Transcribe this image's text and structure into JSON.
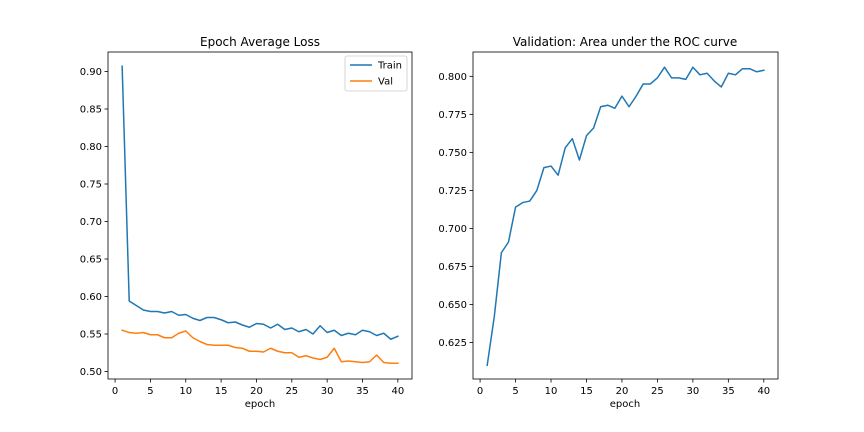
{
  "chart_data": [
    {
      "type": "line",
      "title": "Epoch Average Loss",
      "xlabel": "epoch",
      "ylabel": "",
      "xlim": [
        -1,
        42
      ],
      "ylim": [
        0.49,
        0.926
      ],
      "xticks": [
        0,
        5,
        10,
        15,
        20,
        25,
        30,
        35,
        40
      ],
      "yticks": [
        0.5,
        0.55,
        0.6,
        0.65,
        0.7,
        0.75,
        0.8,
        0.85,
        0.9
      ],
      "ytick_labels": [
        "0.50",
        "0.55",
        "0.60",
        "0.65",
        "0.70",
        "0.75",
        "0.80",
        "0.85",
        "0.90"
      ],
      "legend": "top-right",
      "series": [
        {
          "name": "Train",
          "color": "#1f77b4",
          "x": [
            1,
            2,
            3,
            4,
            5,
            6,
            7,
            8,
            9,
            10,
            11,
            12,
            13,
            14,
            15,
            16,
            17,
            18,
            19,
            20,
            21,
            22,
            23,
            24,
            25,
            26,
            27,
            28,
            29,
            30,
            31,
            32,
            33,
            34,
            35,
            36,
            37,
            38,
            39,
            40
          ],
          "values": [
            0.907,
            0.594,
            0.588,
            0.582,
            0.58,
            0.58,
            0.578,
            0.58,
            0.575,
            0.576,
            0.571,
            0.568,
            0.572,
            0.572,
            0.569,
            0.565,
            0.566,
            0.562,
            0.559,
            0.564,
            0.563,
            0.558,
            0.563,
            0.556,
            0.558,
            0.553,
            0.556,
            0.55,
            0.561,
            0.552,
            0.555,
            0.548,
            0.551,
            0.549,
            0.555,
            0.553,
            0.548,
            0.551,
            0.543,
            0.547
          ]
        },
        {
          "name": "Val",
          "color": "#ff7f0e",
          "x": [
            1,
            2,
            3,
            4,
            5,
            6,
            7,
            8,
            9,
            10,
            11,
            12,
            13,
            14,
            15,
            16,
            17,
            18,
            19,
            20,
            21,
            22,
            23,
            24,
            25,
            26,
            27,
            28,
            29,
            30,
            31,
            32,
            33,
            34,
            35,
            36,
            37,
            38,
            39,
            40
          ],
          "values": [
            0.555,
            0.552,
            0.551,
            0.552,
            0.549,
            0.549,
            0.545,
            0.545,
            0.551,
            0.554,
            0.545,
            0.54,
            0.536,
            0.535,
            0.535,
            0.535,
            0.532,
            0.531,
            0.527,
            0.527,
            0.526,
            0.531,
            0.527,
            0.525,
            0.525,
            0.519,
            0.521,
            0.518,
            0.516,
            0.519,
            0.531,
            0.513,
            0.514,
            0.513,
            0.512,
            0.513,
            0.522,
            0.512,
            0.511,
            0.511
          ]
        }
      ]
    },
    {
      "type": "line",
      "title": "Validation: Area under the ROC curve",
      "xlabel": "epoch",
      "ylabel": "",
      "xlim": [
        -1,
        42
      ],
      "ylim": [
        0.601,
        0.816
      ],
      "xticks": [
        0,
        5,
        10,
        15,
        20,
        25,
        30,
        35,
        40
      ],
      "yticks": [
        0.625,
        0.65,
        0.675,
        0.7,
        0.725,
        0.75,
        0.775,
        0.8
      ],
      "ytick_labels": [
        "0.625",
        "0.650",
        "0.675",
        "0.700",
        "0.725",
        "0.750",
        "0.775",
        "0.800"
      ],
      "series": [
        {
          "color": "#1f77b4",
          "x": [
            1,
            2,
            3,
            4,
            5,
            6,
            7,
            8,
            9,
            10,
            11,
            12,
            13,
            14,
            15,
            16,
            17,
            18,
            19,
            20,
            21,
            22,
            23,
            24,
            25,
            26,
            27,
            28,
            29,
            30,
            31,
            32,
            33,
            34,
            35,
            36,
            37,
            38,
            39,
            40
          ],
          "values": [
            0.61,
            0.642,
            0.684,
            0.691,
            0.714,
            0.717,
            0.718,
            0.725,
            0.74,
            0.741,
            0.735,
            0.753,
            0.759,
            0.745,
            0.761,
            0.766,
            0.78,
            0.781,
            0.779,
            0.787,
            0.78,
            0.787,
            0.795,
            0.795,
            0.799,
            0.806,
            0.799,
            0.799,
            0.798,
            0.806,
            0.801,
            0.802,
            0.797,
            0.793,
            0.802,
            0.801,
            0.805,
            0.805,
            0.803,
            0.804
          ]
        }
      ]
    }
  ]
}
